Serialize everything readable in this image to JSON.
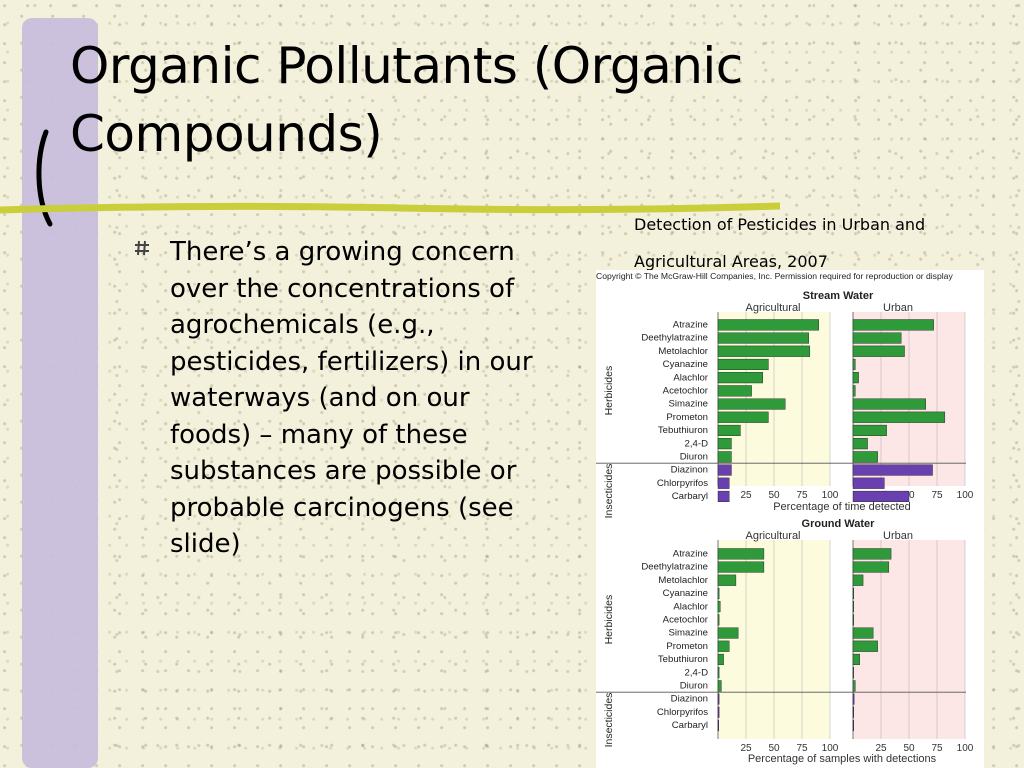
{
  "slide": {
    "title": "Organic Pollutants (Organic Compounds)",
    "bullet": "There’s a growing concern over the concentrations of agrochemicals (e.g., pesticides, fertilizers) in our waterways (and on our foods) – many of these substances are possible or probable carcinogens (see slide)",
    "caption_line1": "Detection of Pesticides in Urban and",
    "caption_line2": "Agricultural Areas, 2007",
    "copyright": "Copyright © The McGraw-Hill Companies, Inc. Permission required for reproduction or display",
    "colors": {
      "lavender_bar": "#c9bedc",
      "green_rule": "#c8cf3a",
      "herbicide_bar": "#2f9a3a",
      "insecticide_bar": "#6a3fb0",
      "agricultural_bg": "#fcfbdd",
      "urban_bg": "#fde6e6"
    }
  },
  "chart_data": [
    {
      "type": "bar",
      "orientation": "horizontal",
      "title": "Stream Water",
      "xlabel": "Percentage of time detected",
      "groups": [
        "Herbicides",
        "Insecticides"
      ],
      "categories": [
        "Atrazine",
        "Deethylatrazine",
        "Metolachlor",
        "Cyanazine",
        "Alachlor",
        "Acetochlor",
        "Simazine",
        "Prometon",
        "Tebuthiuron",
        "2,4-D",
        "Diuron",
        "Diazinon",
        "Chlorpyrifos",
        "Carbaryl"
      ],
      "category_group": [
        "Herbicides",
        "Herbicides",
        "Herbicides",
        "Herbicides",
        "Herbicides",
        "Herbicides",
        "Herbicides",
        "Herbicides",
        "Herbicides",
        "Herbicides",
        "Herbicides",
        "Insecticides",
        "Insecticides",
        "Insecticides"
      ],
      "xticks": [
        25,
        50,
        75,
        100
      ],
      "xlim": [
        0,
        100
      ],
      "series": [
        {
          "name": "Agricultural",
          "values": [
            90,
            81,
            82,
            45,
            40,
            30,
            60,
            45,
            20,
            12,
            12,
            12,
            10,
            10
          ]
        },
        {
          "name": "Urban",
          "values": [
            72,
            43,
            46,
            2,
            5,
            2,
            65,
            82,
            30,
            13,
            22,
            71,
            28,
            50
          ]
        }
      ]
    },
    {
      "type": "bar",
      "orientation": "horizontal",
      "title": "Ground Water",
      "xlabel": "Percentage of samples with detections",
      "groups": [
        "Herbicides",
        "Insecticides"
      ],
      "categories": [
        "Atrazine",
        "Deethylatrazine",
        "Metolachlor",
        "Cyanazine",
        "Alachlor",
        "Acetochlor",
        "Simazine",
        "Prometon",
        "Tebuthiuron",
        "2,4-D",
        "Diuron",
        "Diazinon",
        "Chlorpyrifos",
        "Carbaryl"
      ],
      "category_group": [
        "Herbicides",
        "Herbicides",
        "Herbicides",
        "Herbicides",
        "Herbicides",
        "Herbicides",
        "Herbicides",
        "Herbicides",
        "Herbicides",
        "Herbicides",
        "Herbicides",
        "Insecticides",
        "Insecticides",
        "Insecticides"
      ],
      "xticks": [
        25,
        50,
        75,
        100
      ],
      "xlim": [
        0,
        100
      ],
      "series": [
        {
          "name": "Agricultural",
          "values": [
            41,
            41,
            16,
            1,
            2,
            1,
            18,
            10,
            5,
            1,
            3,
            1,
            1,
            0.5
          ]
        },
        {
          "name": "Urban",
          "values": [
            34,
            32,
            9,
            0.5,
            0.5,
            0.5,
            18,
            22,
            6,
            0.5,
            2,
            1,
            0.5,
            0.5
          ]
        }
      ]
    }
  ]
}
